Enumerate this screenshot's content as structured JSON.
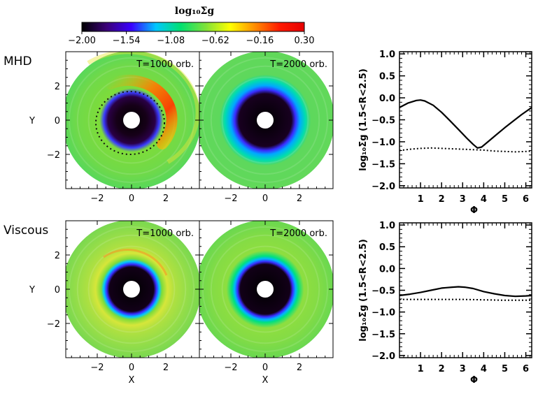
{
  "colorbar": {
    "title": "log₁₀Σg",
    "ticks": [
      "−2.00",
      "−1.54",
      "−1.08",
      "−0.62",
      "−0.16",
      "0.30"
    ],
    "range": [
      -2.0,
      0.3
    ],
    "colors": [
      "#000000",
      "#3b0077",
      "#3a00ff",
      "#00c8ff",
      "#00e070",
      "#7ee23a",
      "#ffff00",
      "#ff8c00",
      "#ff1a00",
      "#e60000"
    ]
  },
  "rows": [
    {
      "label": "MHD",
      "disk_titles": [
        "T=1000 orb.",
        "T=2000 orb."
      ]
    },
    {
      "label": "Viscous",
      "disk_titles": [
        "T=1000 orb.",
        "T=2000 orb."
      ]
    }
  ],
  "disk_axes": {
    "xlabel": "X",
    "ylabel": "Y",
    "xticks": [
      "−2",
      "0",
      "2"
    ],
    "yticks": [
      "2",
      "0",
      "−2"
    ]
  },
  "chart_data": [
    {
      "type": "line",
      "panel": "MHD",
      "xlabel": "Φ",
      "ylabel": "log₁₀Σg (1.5<R<2.5)",
      "xlim": [
        0,
        6.28
      ],
      "ylim": [
        -2.05,
        1.05
      ],
      "xticks": [
        "1",
        "2",
        "3",
        "4",
        "5",
        "6"
      ],
      "yticks": [
        "1.0",
        "0.5",
        "0.0",
        "−0.5",
        "−1.0",
        "−1.5",
        "−2.0"
      ],
      "series": [
        {
          "style": "solid",
          "x": [
            0,
            0.4,
            0.8,
            1.0,
            1.2,
            1.6,
            2.0,
            2.4,
            2.8,
            3.2,
            3.5,
            3.7,
            3.9,
            4.2,
            4.6,
            5.0,
            5.4,
            5.8,
            6.28
          ],
          "y": [
            -0.22,
            -0.12,
            -0.06,
            -0.05,
            -0.07,
            -0.17,
            -0.33,
            -0.52,
            -0.72,
            -0.92,
            -1.06,
            -1.14,
            -1.12,
            -1.0,
            -0.84,
            -0.68,
            -0.53,
            -0.38,
            -0.22
          ]
        },
        {
          "style": "dotted",
          "x": [
            0,
            0.5,
            1.0,
            1.5,
            2.0,
            2.5,
            3.0,
            3.5,
            4.0,
            4.5,
            5.0,
            5.5,
            6.0,
            6.28
          ],
          "y": [
            -1.2,
            -1.17,
            -1.15,
            -1.14,
            -1.15,
            -1.16,
            -1.17,
            -1.18,
            -1.19,
            -1.21,
            -1.22,
            -1.23,
            -1.22,
            -1.21
          ]
        }
      ]
    },
    {
      "type": "line",
      "panel": "Viscous",
      "xlabel": "Φ",
      "ylabel": "log₁₀Σg (1.5<R<2.5)",
      "xlim": [
        0,
        6.28
      ],
      "ylim": [
        -2.05,
        1.05
      ],
      "xticks": [
        "1",
        "2",
        "3",
        "4",
        "5",
        "6"
      ],
      "yticks": [
        "1.0",
        "0.5",
        "0.0",
        "−0.5",
        "−1.0",
        "−1.5",
        "−2.0"
      ],
      "series": [
        {
          "style": "solid",
          "x": [
            0,
            0.5,
            1.0,
            1.5,
            2.0,
            2.5,
            2.8,
            3.1,
            3.5,
            4.0,
            4.5,
            5.0,
            5.5,
            6.0,
            6.28
          ],
          "y": [
            -0.62,
            -0.59,
            -0.55,
            -0.5,
            -0.45,
            -0.43,
            -0.42,
            -0.43,
            -0.46,
            -0.53,
            -0.58,
            -0.62,
            -0.64,
            -0.63,
            -0.62
          ]
        },
        {
          "style": "dotted",
          "x": [
            0,
            1.0,
            2.0,
            3.0,
            4.0,
            5.0,
            6.0,
            6.28
          ],
          "y": [
            -0.71,
            -0.71,
            -0.71,
            -0.71,
            -0.72,
            -0.73,
            -0.73,
            -0.73
          ]
        }
      ]
    }
  ]
}
